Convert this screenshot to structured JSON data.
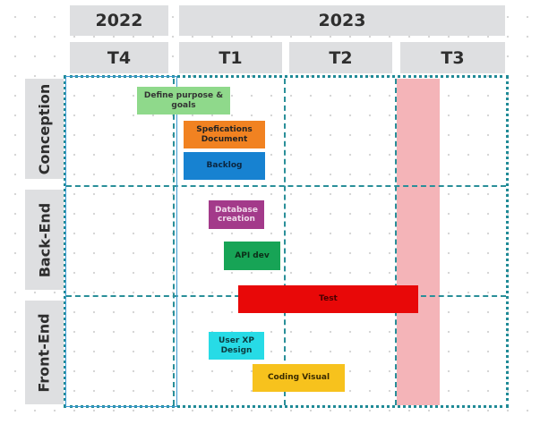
{
  "years": [
    {
      "label": "2022"
    },
    {
      "label": "2023"
    }
  ],
  "quarters": [
    {
      "label": "T4"
    },
    {
      "label": "T1"
    },
    {
      "label": "T2"
    },
    {
      "label": "T3"
    }
  ],
  "rows": [
    {
      "label": "Conception"
    },
    {
      "label": "Back-End"
    },
    {
      "label": "Front-End"
    }
  ],
  "tasks": [
    {
      "label": "Define purpose & goals",
      "color": "#8fd98b",
      "text_color": "#333333"
    },
    {
      "label": "Spefications Document",
      "color": "#f18221",
      "text_color": "#222222"
    },
    {
      "label": "Backlog",
      "color": "#1782d1",
      "text_color": "#0b2640"
    },
    {
      "label": "Database creation",
      "color": "#a33a8a",
      "text_color": "#f0d8ea"
    },
    {
      "label": "API dev",
      "color": "#17a456",
      "text_color": "#0b2e18"
    },
    {
      "label": "Test",
      "color": "#e80808",
      "text_color": "#4a0000"
    },
    {
      "label": "User XP Design",
      "color": "#27dbe6",
      "text_color": "#0c3a3e"
    },
    {
      "label": "Coding Visual",
      "color": "#f7c21d",
      "text_color": "#3a2b00"
    }
  ],
  "colors": {
    "header_bg": "#dedfe1",
    "grid_lines": "#2a8f99",
    "highlight_column": "#f4b4b8",
    "q4_frame": "#3d9ad1"
  }
}
